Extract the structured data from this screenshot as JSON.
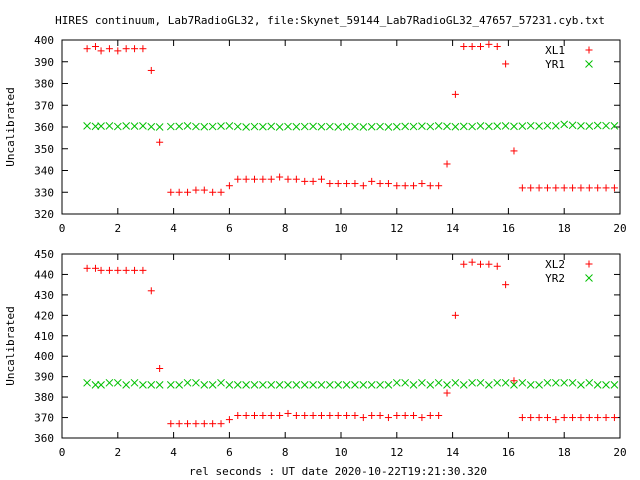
{
  "title": "HIRES continuum, Lab7RadioGL32, file:Skynet_59144_Lab7RadioGL32_47657_57231.cyb.txt",
  "xlabel": "rel seconds : UT date 2020-10-22T19:21:30.320",
  "colors": {
    "xl": "#ff0000",
    "yr": "#00c000",
    "axis": "#000000"
  },
  "chart_data": [
    {
      "type": "scatter",
      "ylabel": "Uncalibrated",
      "xlim": [
        0,
        20
      ],
      "ylim": [
        320,
        400
      ],
      "xticks": [
        0,
        2,
        4,
        6,
        8,
        10,
        12,
        14,
        16,
        18,
        20
      ],
      "yticks": [
        320,
        330,
        340,
        350,
        360,
        370,
        380,
        390,
        400
      ],
      "grid": false,
      "legend_position": "top-right",
      "series": [
        {
          "name": "XL1",
          "marker": "plus",
          "color": "#ff0000",
          "x": [
            0.9,
            1.2,
            1.4,
            1.7,
            2.0,
            2.3,
            2.6,
            2.9,
            3.2,
            3.5,
            3.9,
            4.2,
            4.5,
            4.8,
            5.1,
            5.4,
            5.7,
            6.0,
            6.3,
            6.6,
            6.9,
            7.2,
            7.5,
            7.8,
            8.1,
            8.4,
            8.7,
            9.0,
            9.3,
            9.6,
            9.9,
            10.2,
            10.5,
            10.8,
            11.1,
            11.4,
            11.7,
            12.0,
            12.3,
            12.6,
            12.9,
            13.2,
            13.5,
            13.8,
            14.1,
            14.4,
            14.7,
            15.0,
            15.3,
            15.6,
            15.9,
            16.2,
            16.5,
            16.8,
            17.1,
            17.4,
            17.7,
            18.0,
            18.3,
            18.6,
            18.9,
            19.2,
            19.5,
            19.8
          ],
          "y": [
            396,
            397,
            395,
            396,
            395,
            396,
            396,
            396,
            386,
            353,
            330,
            330,
            330,
            331,
            331,
            330,
            330,
            333,
            336,
            336,
            336,
            336,
            336,
            337,
            336,
            336,
            335,
            335,
            336,
            334,
            334,
            334,
            334,
            333,
            335,
            334,
            334,
            333,
            333,
            333,
            334,
            333,
            333,
            343,
            375,
            397,
            397,
            397,
            398,
            397,
            389,
            349,
            332,
            332,
            332,
            332,
            332,
            332,
            332,
            332,
            332,
            332,
            332,
            332
          ]
        },
        {
          "name": "YR1",
          "marker": "cross",
          "color": "#00c000",
          "x": [
            0.9,
            1.2,
            1.4,
            1.7,
            2.0,
            2.3,
            2.6,
            2.9,
            3.2,
            3.5,
            3.9,
            4.2,
            4.5,
            4.8,
            5.1,
            5.4,
            5.7,
            6.0,
            6.3,
            6.6,
            6.9,
            7.2,
            7.5,
            7.8,
            8.1,
            8.4,
            8.7,
            9.0,
            9.3,
            9.6,
            9.9,
            10.2,
            10.5,
            10.8,
            11.1,
            11.4,
            11.7,
            12.0,
            12.3,
            12.6,
            12.9,
            13.2,
            13.5,
            13.8,
            14.1,
            14.4,
            14.7,
            15.0,
            15.3,
            15.6,
            15.9,
            16.2,
            16.5,
            16.8,
            17.1,
            17.4,
            17.7,
            18.0,
            18.3,
            18.6,
            18.9,
            19.2,
            19.5,
            19.8
          ],
          "y": [
            360.5,
            360.3,
            360.4,
            360.5,
            360.2,
            360.5,
            360.4,
            360.5,
            360.1,
            360.0,
            360.2,
            360.3,
            360.5,
            360.2,
            360.1,
            360.2,
            360.4,
            360.5,
            360.2,
            360.0,
            360.2,
            360.1,
            360.3,
            360.0,
            360.2,
            360.1,
            360.2,
            360.3,
            360.1,
            360.2,
            360.0,
            360.1,
            360.2,
            360.0,
            360.1,
            360.2,
            360.0,
            360.1,
            360.3,
            360.2,
            360.4,
            360.2,
            360.5,
            360.3,
            360.1,
            360.3,
            360.2,
            360.5,
            360.3,
            360.4,
            360.5,
            360.3,
            360.4,
            360.6,
            360.4,
            360.6,
            360.5,
            361.2,
            360.8,
            360.5,
            360.4,
            360.7,
            360.6,
            360.5
          ]
        }
      ]
    },
    {
      "type": "scatter",
      "ylabel": "Uncalibrated",
      "xlabel": "rel seconds : UT date 2020-10-22T19:21:30.320",
      "xlim": [
        0,
        20
      ],
      "ylim": [
        360,
        450
      ],
      "xticks": [
        0,
        2,
        4,
        6,
        8,
        10,
        12,
        14,
        16,
        18,
        20
      ],
      "yticks": [
        360,
        370,
        380,
        390,
        400,
        410,
        420,
        430,
        440,
        450
      ],
      "grid": false,
      "legend_position": "top-right",
      "series": [
        {
          "name": "XL2",
          "marker": "plus",
          "color": "#ff0000",
          "x": [
            0.9,
            1.2,
            1.4,
            1.7,
            2.0,
            2.3,
            2.6,
            2.9,
            3.2,
            3.5,
            3.9,
            4.2,
            4.5,
            4.8,
            5.1,
            5.4,
            5.7,
            6.0,
            6.3,
            6.6,
            6.9,
            7.2,
            7.5,
            7.8,
            8.1,
            8.4,
            8.7,
            9.0,
            9.3,
            9.6,
            9.9,
            10.2,
            10.5,
            10.8,
            11.1,
            11.4,
            11.7,
            12.0,
            12.3,
            12.6,
            12.9,
            13.2,
            13.5,
            13.8,
            14.1,
            14.4,
            14.7,
            15.0,
            15.3,
            15.6,
            15.9,
            16.2,
            16.5,
            16.8,
            17.1,
            17.4,
            17.7,
            18.0,
            18.3,
            18.6,
            18.9,
            19.2,
            19.5,
            19.8
          ],
          "y": [
            443,
            443,
            442,
            442,
            442,
            442,
            442,
            442,
            432,
            394,
            367,
            367,
            367,
            367,
            367,
            367,
            367,
            369,
            371,
            371,
            371,
            371,
            371,
            371,
            372,
            371,
            371,
            371,
            371,
            371,
            371,
            371,
            371,
            370,
            371,
            371,
            370,
            371,
            371,
            371,
            370,
            371,
            371,
            382,
            420,
            445,
            446,
            445,
            445,
            444,
            435,
            388,
            370,
            370,
            370,
            370,
            369,
            370,
            370,
            370,
            370,
            370,
            370,
            370
          ]
        },
        {
          "name": "YR2",
          "marker": "cross",
          "color": "#00c000",
          "x": [
            0.9,
            1.2,
            1.4,
            1.7,
            2.0,
            2.3,
            2.6,
            2.9,
            3.2,
            3.5,
            3.9,
            4.2,
            4.5,
            4.8,
            5.1,
            5.4,
            5.7,
            6.0,
            6.3,
            6.6,
            6.9,
            7.2,
            7.5,
            7.8,
            8.1,
            8.4,
            8.7,
            9.0,
            9.3,
            9.6,
            9.9,
            10.2,
            10.5,
            10.8,
            11.1,
            11.4,
            11.7,
            12.0,
            12.3,
            12.6,
            12.9,
            13.2,
            13.5,
            13.8,
            14.1,
            14.4,
            14.7,
            15.0,
            15.3,
            15.6,
            15.9,
            16.2,
            16.5,
            16.8,
            17.1,
            17.4,
            17.7,
            18.0,
            18.3,
            18.6,
            18.9,
            19.2,
            19.5,
            19.8
          ],
          "y": [
            387,
            386,
            386,
            387,
            387,
            386,
            387,
            386,
            386,
            386,
            386,
            386,
            387,
            387,
            386,
            386,
            387,
            386,
            386,
            386,
            386,
            386,
            386,
            386,
            386,
            386,
            386,
            386,
            386,
            386,
            386,
            386,
            386,
            386,
            386,
            386,
            386,
            387,
            387,
            386,
            387,
            386,
            387,
            386,
            387,
            386,
            387,
            387,
            386,
            387,
            387,
            386,
            387,
            386,
            386,
            387,
            387,
            387,
            387,
            386,
            387,
            386,
            386,
            386
          ]
        }
      ]
    }
  ]
}
